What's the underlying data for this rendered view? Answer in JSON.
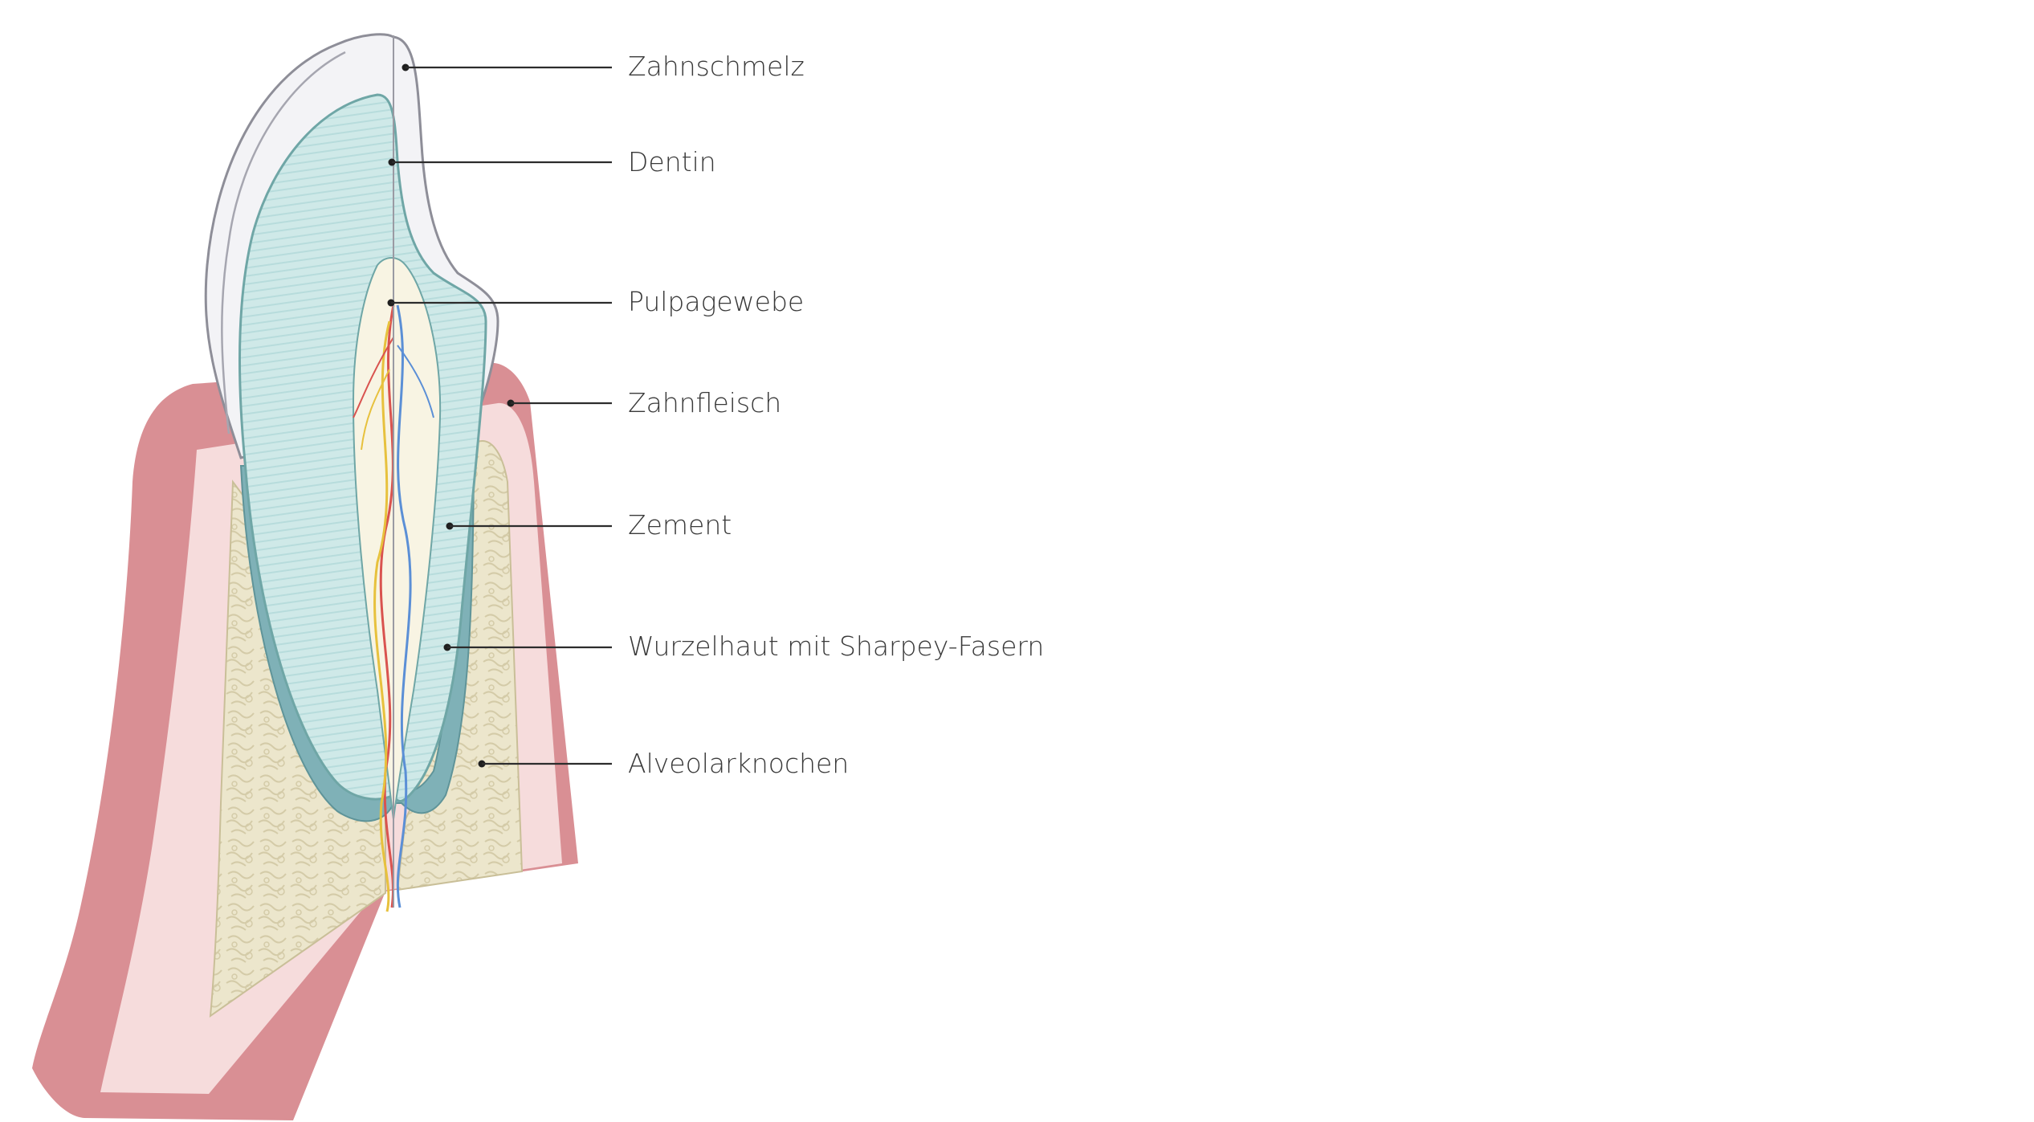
{
  "labels": [
    {
      "id": "enamel",
      "text": "Zahnschmelz"
    },
    {
      "id": "dentin",
      "text": "Dentin"
    },
    {
      "id": "pulp",
      "text": "Pulpagewebe"
    },
    {
      "id": "gum",
      "text": "Zahnfleisch"
    },
    {
      "id": "cement",
      "text": "Zement"
    },
    {
      "id": "periodontal",
      "text": "Wurzelhaut mit Sharpey-Fasern"
    },
    {
      "id": "bone",
      "text": "Alveolarknochen"
    }
  ],
  "colors": {
    "gum_outer": "#d98f94",
    "gum_inner": "#f6dcdc",
    "bone": "#ece6cc",
    "bone_pattern": "#d7cfae",
    "dentin": "#cfe9e8",
    "dentin_stroke": "#6fa6a6",
    "enamel": "#f3f3f6",
    "enamel_stroke": "#8e8e98",
    "pulp": "#f8f4e3",
    "cement": "#7fb1b7",
    "vessel_red": "#d9534f",
    "vessel_blue": "#5b8fd6",
    "vessel_yellow": "#e7c13d"
  }
}
